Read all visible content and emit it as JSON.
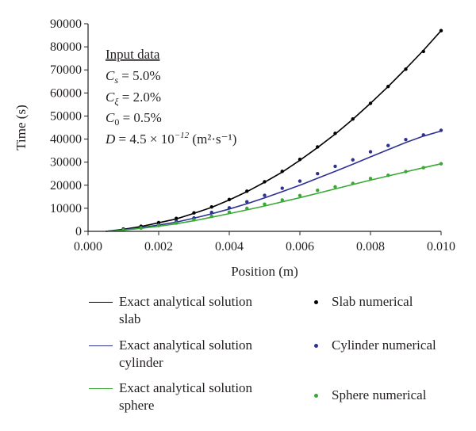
{
  "colors": {
    "slab": "#000000",
    "cylinder": "#2e3192",
    "sphere": "#39a935"
  },
  "input_box": {
    "heading": "Input data",
    "lines": [
      {
        "sym": "C",
        "sub": "s",
        "rest": " = 5.0%"
      },
      {
        "sym": "C",
        "sub": "ξ",
        "rest": " = 2.0%"
      },
      {
        "sym": "C",
        "sub": "0",
        "rest": " = 0.5%"
      },
      {
        "sym": "D",
        "sub": "",
        "rest": " = 4.5 × 10",
        "sup": "−12",
        "tail": " (m²·s⁻¹)"
      }
    ]
  },
  "legend": {
    "slab_line": "Exact analytical solution\nslab",
    "cylinder_line": "Exact analytical solution\ncylinder",
    "sphere_line": "Exact analytical solution\nsphere",
    "slab_points": "Slab numerical",
    "cylinder_points": "Cylinder numerical",
    "sphere_points": "Sphere numerical"
  },
  "chart_data": {
    "type": "line",
    "title": "",
    "xlabel": "Position (m)",
    "ylabel": "Time (s)",
    "xlim": [
      0.0,
      0.01
    ],
    "ylim": [
      0,
      90000
    ],
    "xticks": [
      0.0,
      0.002,
      0.004,
      0.006,
      0.008,
      0.01
    ],
    "xtick_labels": [
      "0.000",
      "0.002",
      "0.004",
      "0.006",
      "0.008",
      "0.010"
    ],
    "yticks": [
      0,
      10000,
      20000,
      30000,
      40000,
      50000,
      60000,
      70000,
      80000,
      90000
    ],
    "ytick_labels": [
      "0",
      "10000",
      "20000",
      "30000",
      "40000",
      "50000",
      "60000",
      "70000",
      "80000",
      "90000"
    ],
    "grid": false,
    "legend_position": "bottom",
    "series": [
      {
        "name": "Exact analytical solution slab",
        "kind": "line",
        "color": "slab",
        "x": [
          0.0005,
          0.001,
          0.0015,
          0.002,
          0.0025,
          0.003,
          0.0035,
          0.004,
          0.0045,
          0.005,
          0.0055,
          0.006,
          0.0065,
          0.007,
          0.0075,
          0.008,
          0.0085,
          0.009,
          0.0095,
          0.01
        ],
        "y": [
          0,
          900,
          2100,
          3700,
          5400,
          7800,
          10400,
          13600,
          17200,
          21300,
          25700,
          30800,
          36300,
          42200,
          48600,
          55500,
          62800,
          70500,
          78500,
          87000
        ]
      },
      {
        "name": "Exact analytical solution cylinder",
        "kind": "line",
        "color": "cylinder",
        "x": [
          0.0005,
          0.001,
          0.0015,
          0.002,
          0.0025,
          0.003,
          0.0035,
          0.004,
          0.0045,
          0.005,
          0.0055,
          0.006,
          0.0065,
          0.007,
          0.0075,
          0.008,
          0.0085,
          0.009,
          0.0095,
          0.01
        ],
        "y": [
          0,
          700,
          1600,
          2700,
          4000,
          5700,
          7600,
          9700,
          12000,
          14500,
          17200,
          20000,
          23000,
          26000,
          29100,
          32300,
          35400,
          38500,
          41300,
          43500
        ]
      },
      {
        "name": "Exact analytical solution sphere",
        "kind": "line",
        "color": "sphere",
        "x": [
          0.0005,
          0.001,
          0.0015,
          0.002,
          0.0025,
          0.003,
          0.0035,
          0.004,
          0.0045,
          0.005,
          0.0055,
          0.006,
          0.0065,
          0.007,
          0.0075,
          0.008,
          0.0085,
          0.009,
          0.0095,
          0.01
        ],
        "y": [
          0,
          500,
          1300,
          2200,
          3300,
          4600,
          6100,
          7700,
          9300,
          11000,
          12800,
          14600,
          16500,
          18400,
          20300,
          22200,
          24000,
          25800,
          27600,
          29300
        ]
      },
      {
        "name": "Slab numerical",
        "kind": "points",
        "color": "slab",
        "x": [
          0.001,
          0.0015,
          0.002,
          0.0025,
          0.003,
          0.0035,
          0.004,
          0.0045,
          0.005,
          0.0055,
          0.006,
          0.0065,
          0.007,
          0.0075,
          0.008,
          0.0085,
          0.009,
          0.0095,
          0.01
        ],
        "y": [
          1000,
          2200,
          3800,
          5600,
          8000,
          10600,
          13800,
          17400,
          21500,
          26000,
          31200,
          36600,
          42500,
          48700,
          55500,
          62800,
          70300,
          78000,
          87000
        ]
      },
      {
        "name": "Cylinder numerical",
        "kind": "points",
        "color": "cylinder",
        "x": [
          0.001,
          0.0015,
          0.002,
          0.0025,
          0.003,
          0.0035,
          0.004,
          0.0045,
          0.005,
          0.0055,
          0.006,
          0.0065,
          0.007,
          0.0075,
          0.008,
          0.0085,
          0.009,
          0.0095,
          0.01
        ],
        "y": [
          800,
          1700,
          2800,
          4300,
          5800,
          8200,
          10200,
          12800,
          15600,
          18700,
          21800,
          25000,
          28200,
          31000,
          34500,
          37200,
          39800,
          41800,
          43800
        ]
      },
      {
        "name": "Sphere numerical",
        "kind": "points",
        "color": "sphere",
        "x": [
          0.001,
          0.0015,
          0.002,
          0.0025,
          0.003,
          0.0035,
          0.004,
          0.0045,
          0.005,
          0.0055,
          0.006,
          0.0065,
          0.007,
          0.0075,
          0.008,
          0.0085,
          0.009,
          0.0095,
          0.01
        ],
        "y": [
          600,
          1400,
          2500,
          3600,
          5000,
          6500,
          8300,
          10000,
          11800,
          13600,
          15500,
          17800,
          19300,
          20800,
          22900,
          24300,
          25900,
          27600,
          29300
        ]
      }
    ]
  }
}
